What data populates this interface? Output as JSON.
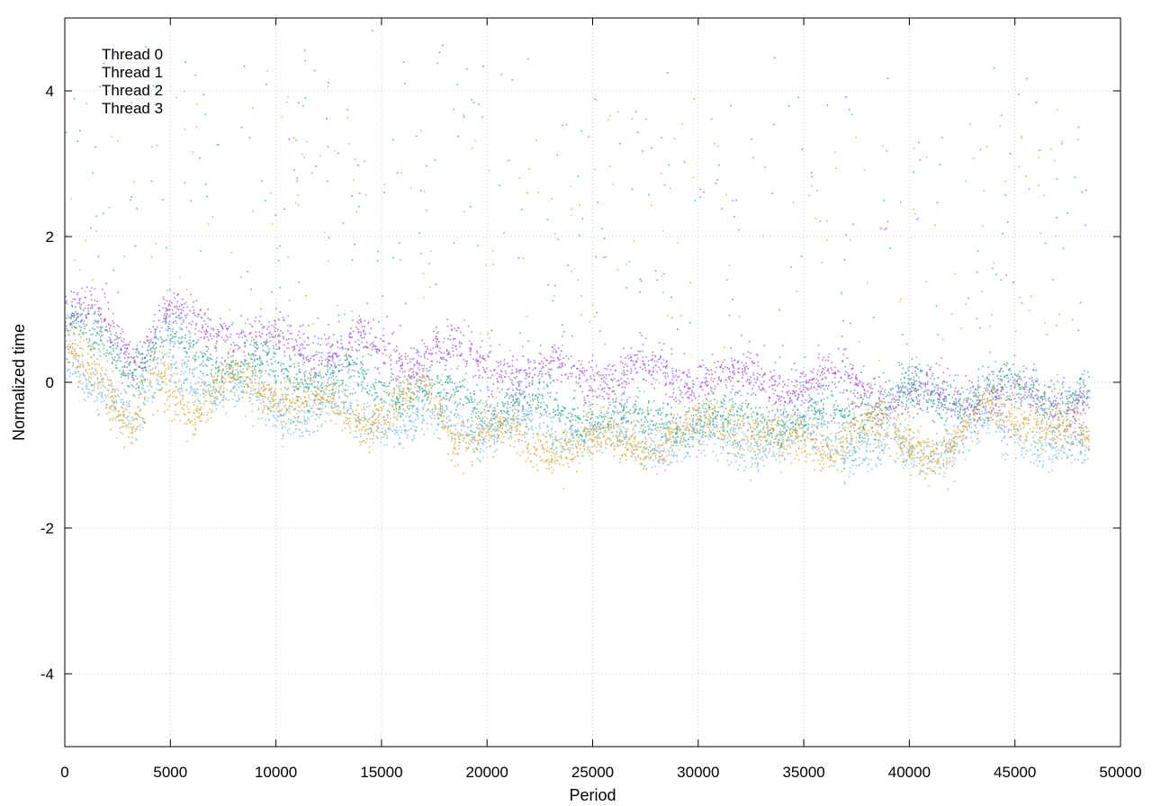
{
  "chart_data": {
    "type": "scatter",
    "title": "",
    "xlabel": "Period",
    "ylabel": "Normalized time",
    "xlim": [
      0,
      50000
    ],
    "ylim": [
      -5,
      5
    ],
    "xticks": [
      0,
      5000,
      10000,
      15000,
      20000,
      25000,
      30000,
      35000,
      40000,
      45000,
      50000
    ],
    "yticks": [
      -4,
      -2,
      0,
      2,
      4
    ],
    "grid": true,
    "legend_position": "top-left",
    "series": [
      {
        "name": "Thread 0",
        "color": "#9b50d6",
        "trend": [
          [
            0,
            0.9
          ],
          [
            2000,
            0.8
          ],
          [
            3500,
            0.3
          ],
          [
            4500,
            0.9
          ],
          [
            6000,
            0.8
          ],
          [
            8000,
            0.7
          ],
          [
            10000,
            0.55
          ],
          [
            12000,
            0.5
          ],
          [
            14000,
            0.5
          ],
          [
            16000,
            0.3
          ],
          [
            17500,
            0.5
          ],
          [
            19000,
            0.3
          ],
          [
            21000,
            0.15
          ],
          [
            23000,
            0.1
          ],
          [
            25000,
            0.1
          ],
          [
            27000,
            0.15
          ],
          [
            29000,
            0.1
          ],
          [
            31000,
            0.1
          ],
          [
            33000,
            0.05
          ],
          [
            35000,
            0.0
          ],
          [
            37500,
            0.05
          ],
          [
            38500,
            -0.15
          ],
          [
            41000,
            -0.2
          ],
          [
            43000,
            -0.15
          ],
          [
            45000,
            -0.2
          ],
          [
            48500,
            -0.25
          ]
        ]
      },
      {
        "name": "Thread 1",
        "color": "#2ba38c",
        "trend": [
          [
            0,
            0.7
          ],
          [
            2000,
            0.6
          ],
          [
            3500,
            0.2
          ],
          [
            5000,
            0.6
          ],
          [
            8000,
            0.2
          ],
          [
            12000,
            0.1
          ],
          [
            16000,
            -0.1
          ],
          [
            20000,
            -0.3
          ],
          [
            24000,
            -0.4
          ],
          [
            28000,
            -0.5
          ],
          [
            32000,
            -0.5
          ],
          [
            36000,
            -0.45
          ],
          [
            40000,
            -0.2
          ],
          [
            44000,
            -0.1
          ],
          [
            48500,
            -0.2
          ]
        ]
      },
      {
        "name": "Thread 2",
        "color": "#72b6e0",
        "trend": [
          [
            0,
            0.2
          ],
          [
            2000,
            0.0
          ],
          [
            3500,
            -0.6
          ],
          [
            5000,
            0.2
          ],
          [
            8000,
            -0.2
          ],
          [
            12000,
            -0.4
          ],
          [
            16000,
            -0.5
          ],
          [
            20000,
            -0.6
          ],
          [
            24000,
            -0.7
          ],
          [
            28000,
            -0.8
          ],
          [
            32000,
            -0.8
          ],
          [
            36000,
            -0.8
          ],
          [
            40000,
            -1.0
          ],
          [
            44000,
            -0.6
          ],
          [
            48500,
            -1.0
          ]
        ]
      },
      {
        "name": "Thread 3",
        "color": "#dba42a",
        "trend": [
          [
            0,
            0.6
          ],
          [
            1500,
            0.3
          ],
          [
            3000,
            -0.8
          ],
          [
            4500,
            0.2
          ],
          [
            6000,
            -0.4
          ],
          [
            8000,
            0.0
          ],
          [
            10000,
            -0.1
          ],
          [
            12000,
            -0.3
          ],
          [
            14000,
            -0.5
          ],
          [
            16000,
            -0.3
          ],
          [
            17000,
            -0.1
          ],
          [
            18500,
            -0.7
          ],
          [
            20000,
            -0.6
          ],
          [
            22000,
            -0.9
          ],
          [
            24000,
            -0.8
          ],
          [
            26000,
            -0.8
          ],
          [
            28000,
            -0.8
          ],
          [
            30000,
            -0.6
          ],
          [
            32000,
            -0.5
          ],
          [
            34000,
            -0.9
          ],
          [
            36000,
            -0.8
          ],
          [
            38000,
            -0.6
          ],
          [
            40000,
            -0.8
          ],
          [
            42000,
            -0.9
          ],
          [
            43500,
            -0.4
          ],
          [
            44500,
            -0.3
          ],
          [
            46000,
            -0.6
          ],
          [
            48500,
            -0.8
          ]
        ]
      }
    ]
  }
}
